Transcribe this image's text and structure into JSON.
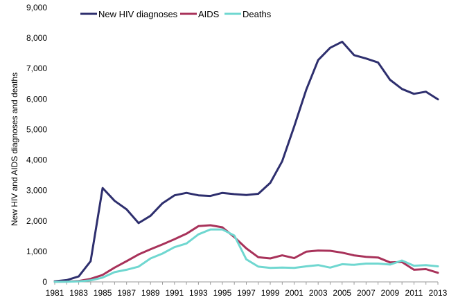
{
  "chart_data": {
    "type": "line",
    "ylabel": "New HIV and AIDS diagnoses and deaths",
    "xlabel": "",
    "ylim": [
      0,
      9000
    ],
    "yticks": [
      0,
      1000,
      2000,
      3000,
      4000,
      5000,
      6000,
      7000,
      8000,
      9000
    ],
    "ytick_labels": [
      "0",
      "1,000",
      "2,000",
      "3,000",
      "4,000",
      "5,000",
      "6,000",
      "7,000",
      "8,000",
      "9,000"
    ],
    "xlim": [
      1981,
      2013
    ],
    "xtick_labels": [
      "1981",
      "1983",
      "1985",
      "1987",
      "1989",
      "1991",
      "1993",
      "1995",
      "1997",
      "1999",
      "2001",
      "2003",
      "2005",
      "2007",
      "2009",
      "2011",
      "2013"
    ],
    "grid": false,
    "legend_position": "top-left",
    "x": [
      1981,
      1982,
      1983,
      1984,
      1985,
      1986,
      1987,
      1988,
      1989,
      1990,
      1991,
      1992,
      1993,
      1994,
      1995,
      1996,
      1997,
      1998,
      1999,
      2000,
      2001,
      2002,
      2003,
      2004,
      2005,
      2006,
      2007,
      2008,
      2009,
      2010,
      2011,
      2012,
      2013
    ],
    "series": [
      {
        "name": "New HIV diagnoses",
        "color": "#2e2f6e",
        "values": [
          20,
          60,
          180,
          680,
          3080,
          2660,
          2380,
          1930,
          2170,
          2580,
          2840,
          2920,
          2840,
          2820,
          2920,
          2880,
          2850,
          2890,
          3250,
          3960,
          5100,
          6300,
          7280,
          7680,
          7880,
          7440,
          7330,
          7200,
          6630,
          6330,
          6170,
          6240,
          5990
        ]
      },
      {
        "name": "AIDS",
        "color": "#a8325a",
        "values": [
          5,
          10,
          30,
          100,
          230,
          470,
          680,
          900,
          1070,
          1230,
          1400,
          1580,
          1830,
          1860,
          1790,
          1470,
          1100,
          810,
          770,
          870,
          780,
          990,
          1030,
          1020,
          960,
          870,
          820,
          800,
          640,
          650,
          400,
          420,
          300
        ]
      },
      {
        "name": "Deaths",
        "color": "#6fd7d0",
        "values": [
          2,
          5,
          15,
          50,
          140,
          320,
          400,
          500,
          770,
          930,
          1140,
          1260,
          1560,
          1720,
          1720,
          1520,
          740,
          500,
          460,
          470,
          460,
          510,
          550,
          470,
          580,
          560,
          600,
          600,
          570,
          700,
          530,
          550,
          510
        ]
      }
    ]
  }
}
